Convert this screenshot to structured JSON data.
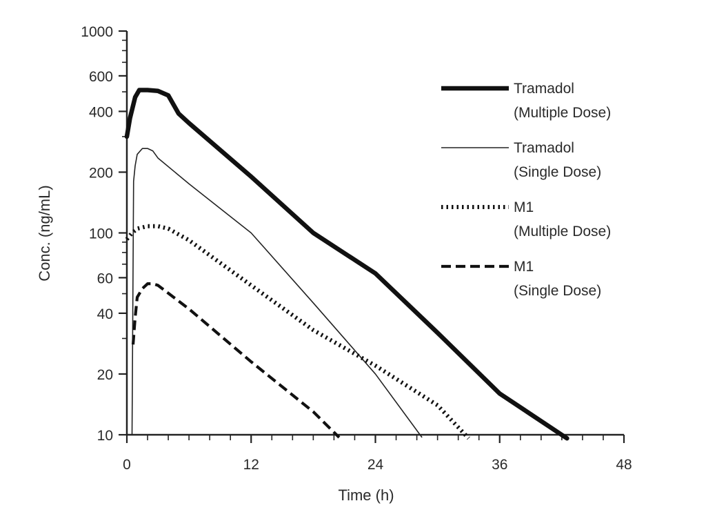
{
  "chart_data": {
    "type": "line",
    "title": "",
    "xlabel": "Time (h)",
    "ylabel": "Conc. (ng/mL)",
    "xlim": [
      0,
      48
    ],
    "ylim": [
      10,
      1000
    ],
    "yscale": "log",
    "x_ticks": [
      0,
      12,
      24,
      36,
      48
    ],
    "y_ticks": [
      10,
      20,
      40,
      60,
      100,
      200,
      400,
      600,
      1000
    ],
    "grid": false,
    "legend_position": "right",
    "series": [
      {
        "name": "Tramadol",
        "name_line2": "(Multiple Dose)",
        "style": "thick-solid",
        "color": "#111111",
        "x": [
          0,
          0.3,
          0.8,
          1.2,
          1.6,
          2,
          3,
          4,
          5,
          6,
          12,
          18,
          24,
          30,
          36,
          42.5
        ],
        "y": [
          300,
          370,
          470,
          510,
          510,
          510,
          505,
          480,
          390,
          350,
          190,
          100,
          63,
          32,
          16,
          9.6
        ]
      },
      {
        "name": "Tramadol",
        "name_line2": "(Single Dose)",
        "style": "thin-solid",
        "color": "#222222",
        "x": [
          0.5,
          0.65,
          0.8,
          1,
          1.5,
          2,
          2.5,
          3,
          6,
          12,
          18,
          24,
          28.5
        ],
        "y": [
          10,
          180,
          215,
          245,
          262,
          262,
          255,
          235,
          175,
          100,
          45,
          20,
          9.7
        ]
      },
      {
        "name": "M1",
        "name_line2": "(Multiple Dose)",
        "style": "dotted",
        "color": "#111111",
        "x": [
          0,
          0.5,
          1,
          2,
          3,
          4,
          6,
          12,
          18,
          24,
          30,
          33
        ],
        "y": [
          93,
          100,
          105,
          108,
          108,
          105,
          92,
          55,
          33,
          22,
          14,
          9.6
        ]
      },
      {
        "name": "M1",
        "name_line2": "(Single Dose)",
        "style": "dashed",
        "color": "#111111",
        "x": [
          0.6,
          0.8,
          1,
          1.5,
          2,
          2.5,
          3,
          6,
          12,
          18,
          20.5
        ],
        "y": [
          28,
          38,
          48,
          53,
          56,
          56,
          55,
          42,
          23,
          13,
          9.7
        ]
      }
    ]
  }
}
